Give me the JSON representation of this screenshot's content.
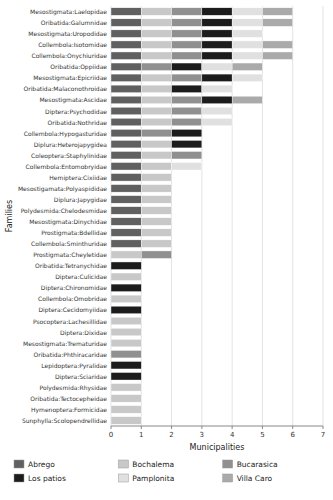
{
  "chart_data": {
    "type": "bar",
    "orientation": "horizontal",
    "stacked": true,
    "xlabel": "Municipalities",
    "ylabel": "Families",
    "xlim": [
      0,
      7
    ],
    "xticks": [
      0,
      1,
      2,
      3,
      4,
      5,
      6,
      7
    ],
    "grid": true,
    "legend": "bottom",
    "categories": [
      "Mesostigmata:Laelopidae",
      "Oribatida:Galumnidae",
      "Mesostigmata:Uropodidae",
      "Collembola:Isotomidae",
      "Collembola:Onychiuridae",
      "Oribatida:Oppiidae",
      "Mesostigmata:Epicriidae",
      "Oribatida:Malaconothroidae",
      "Mesostigmata:Ascidae",
      "Diptera:Psychodidae",
      "Oribatida:Nothridae",
      "Collembola:Hypogasturidae",
      "Diplura:Heterojapygidea",
      "Coleoptera:Staphylinidae",
      "Collembola:Entomobryidae",
      "Hemiptera:Cixiidae",
      "Mesostigamata:Polyaspididae",
      "Diplura:Japygidae",
      "Polydesmida:Chelodesmidae",
      "Mesostigmata:Dinychidae",
      "Prostigmata:Bdellidae",
      "Collembola:Sminthuridae",
      "Prostigmata:Cheyletidae",
      "Oribatida:Tetranychidae",
      "Diptera:Culicidae",
      "Diptera:Chironomidae",
      "Collembola:Omobridae",
      "Diptera:Cecidomyiidae",
      "Psocoptera:Lachesillidae",
      "Diptera:Dixidae",
      "Mesostigmata:Trematuridae",
      "Oribatida:Phthiracaridae",
      "Lepidoptera:Pyralidae",
      "Diptera:Sciaridae",
      "Polydesmida:Rhysidae",
      "Oribatida:Tectocepheidae",
      "Hymenoptera:Formicidae",
      "Sunphylla:Scolopendrellidae"
    ],
    "series": [
      {
        "name": "Abrego",
        "color": "#606060",
        "values": [
          1,
          1,
          1,
          1,
          1,
          1,
          1,
          1,
          1,
          1,
          1,
          1,
          1,
          1,
          1,
          1,
          1,
          1,
          1,
          1,
          1,
          1,
          0,
          0,
          0,
          0,
          0,
          0,
          0,
          0,
          0,
          0,
          0,
          0,
          0,
          0,
          0,
          0
        ]
      },
      {
        "name": "Bochalema",
        "color": "#c8c8c8",
        "values": [
          1,
          1,
          1,
          1,
          1,
          0,
          1,
          1,
          1,
          1,
          1,
          0,
          1,
          1,
          1,
          1,
          1,
          1,
          1,
          1,
          1,
          1,
          1,
          0,
          1,
          0,
          1,
          0,
          1,
          1,
          1,
          0,
          0,
          0,
          1,
          1,
          1,
          1
        ]
      },
      {
        "name": "Bucarasica",
        "color": "#909090",
        "values": [
          1,
          1,
          1,
          1,
          1,
          1,
          1,
          0,
          1,
          1,
          1,
          1,
          0,
          1,
          0,
          0,
          0,
          0,
          0,
          0,
          0,
          0,
          1,
          0,
          0,
          0,
          0,
          0,
          0,
          0,
          0,
          1,
          0,
          0,
          0,
          0,
          0,
          0
        ]
      },
      {
        "name": "Los patios",
        "color": "#1c1c1c",
        "values": [
          1,
          1,
          1,
          1,
          1,
          1,
          1,
          1,
          1,
          0,
          0,
          1,
          1,
          0,
          0,
          0,
          0,
          0,
          0,
          0,
          0,
          0,
          0,
          1,
          0,
          1,
          0,
          1,
          0,
          0,
          0,
          0,
          1,
          1,
          0,
          0,
          0,
          0
        ]
      },
      {
        "name": "Pamplonita",
        "color": "#e0e0e0",
        "values": [
          1,
          1,
          1,
          1,
          1,
          1,
          1,
          1,
          0,
          1,
          1,
          0,
          0,
          0,
          1,
          0,
          0,
          0,
          0,
          0,
          0,
          0,
          0,
          0,
          0,
          0,
          0,
          0,
          0,
          0,
          0,
          0,
          0,
          0,
          0,
          0,
          0,
          0
        ]
      },
      {
        "name": "Villa Caro",
        "color": "#aaaaaa",
        "values": [
          1,
          1,
          0,
          1,
          1,
          1,
          0,
          0,
          1,
          0,
          0,
          0,
          0,
          0,
          0,
          0,
          0,
          0,
          0,
          0,
          0,
          0,
          0,
          0,
          0,
          0,
          0,
          0,
          0,
          0,
          0,
          0,
          0,
          0,
          0,
          0,
          0,
          0
        ]
      }
    ]
  }
}
